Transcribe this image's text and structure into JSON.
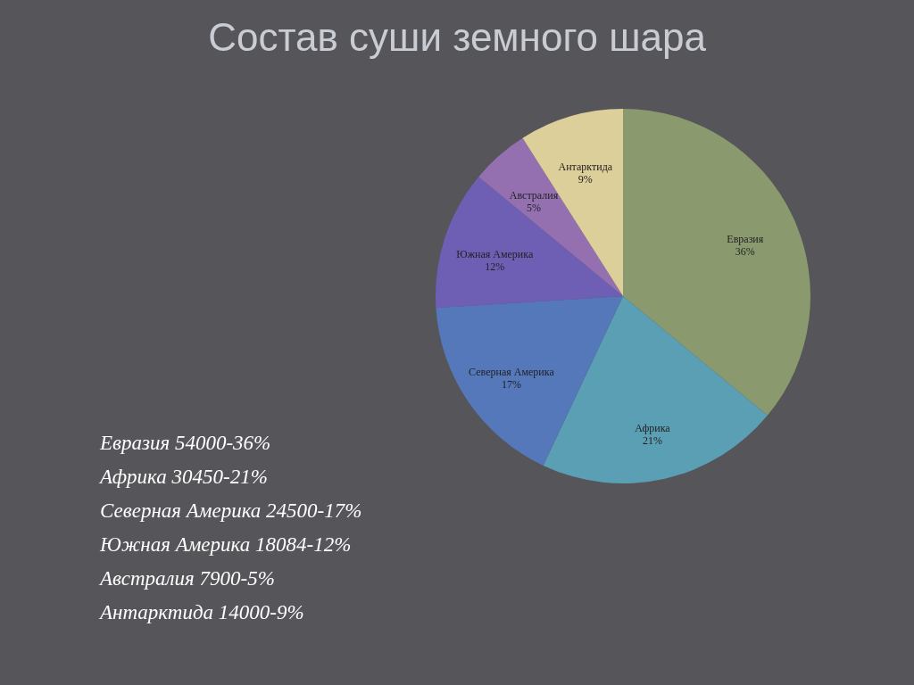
{
  "chart_data": {
    "type": "pie",
    "title": "Состав суши земного шара",
    "categories": [
      "Евразия",
      "Африка",
      "Северная Америка",
      "Южная Америка",
      "Австралия",
      "Антарктида"
    ],
    "values": [
      36,
      21,
      17,
      12,
      5,
      9
    ],
    "value_labels": [
      "36%",
      "21%",
      "17%",
      "12%",
      "5%",
      "9%"
    ],
    "colors": [
      "#8a9a6e",
      "#5b9fb5",
      "#5578bb",
      "#6e5fb5",
      "#9470b0",
      "#dccf9a"
    ],
    "annotations": [
      "Евразия 54000-36%",
      "Африка 30450-21%",
      "Северная Америка 24500-17%",
      "Южная Америка 18084-12%",
      "Австралия 7900-5%",
      "Антарктида 14000-9%"
    ]
  }
}
